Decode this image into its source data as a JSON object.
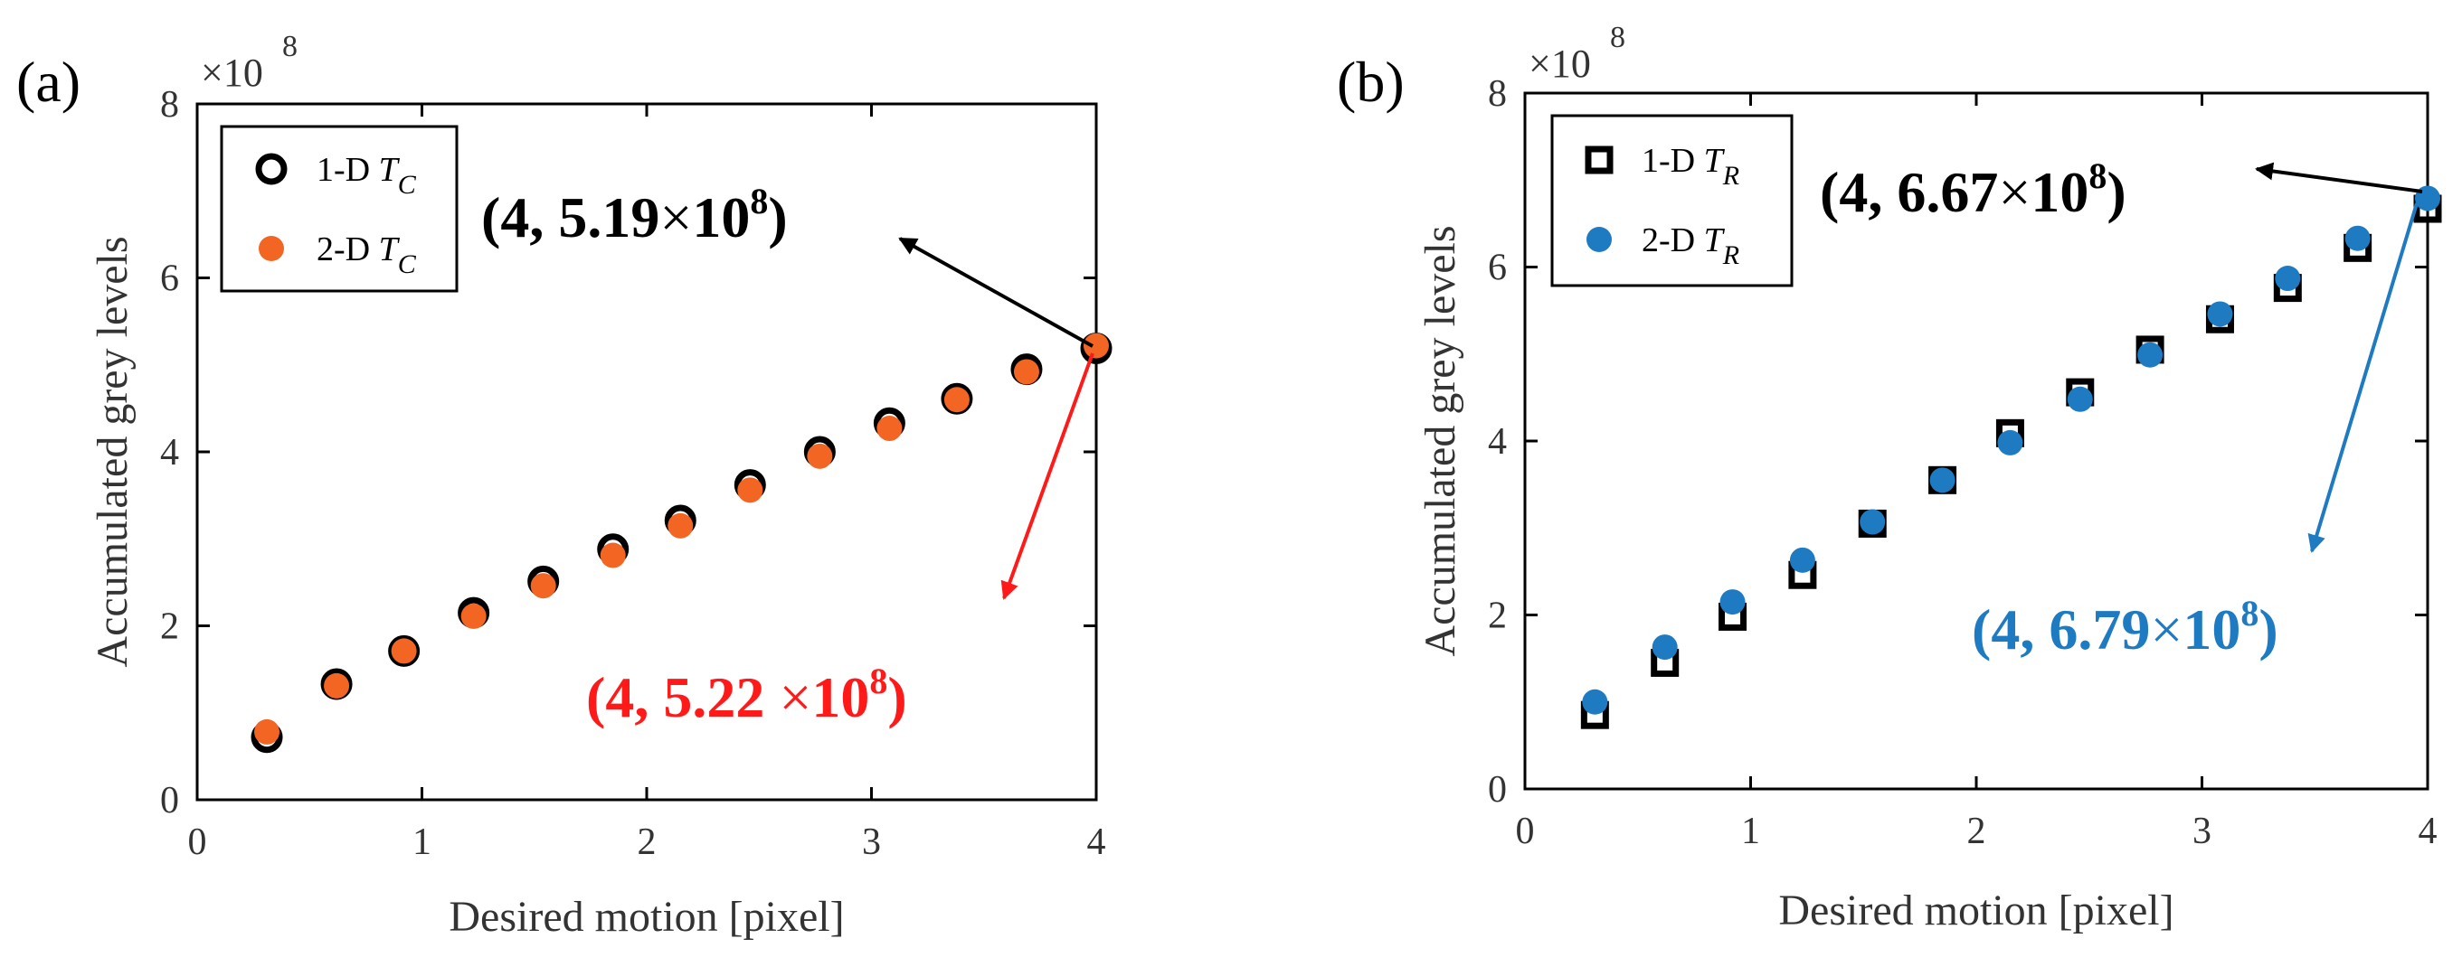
{
  "chart_data": [
    {
      "panel_label": "(a)",
      "type": "scatter",
      "xlabel": "Desired motion [pixel]",
      "ylabel": "Accumulated grey levels",
      "y_exponent": "×10",
      "y_exponent_power": "8",
      "xlim": [
        0,
        4
      ],
      "ylim": [
        0,
        8
      ],
      "xticks": [
        "0",
        "1",
        "2",
        "3",
        "4"
      ],
      "yticks": [
        "0",
        "2",
        "4",
        "6",
        "8"
      ],
      "legend_position": "top-left",
      "series": [
        {
          "name": "1-D",
          "name_sub": "T",
          "name_subscript": "C",
          "marker": "ring",
          "color": "#000000",
          "x": [
            0.31,
            0.62,
            0.92,
            1.23,
            1.54,
            1.85,
            2.15,
            2.46,
            2.77,
            3.08,
            3.38,
            3.69,
            4.0
          ],
          "y": [
            0.72,
            1.33,
            1.71,
            2.15,
            2.51,
            2.88,
            3.21,
            3.62,
            4.0,
            4.33,
            4.61,
            4.95,
            5.19
          ]
        },
        {
          "name": "2-D",
          "name_sub": "T",
          "name_subscript": "C",
          "marker": "dot",
          "color": "#F26522",
          "x": [
            0.31,
            0.62,
            0.92,
            1.23,
            1.54,
            1.85,
            2.15,
            2.46,
            2.77,
            3.08,
            3.38,
            3.69,
            4.0
          ],
          "y": [
            0.78,
            1.31,
            1.71,
            2.11,
            2.46,
            2.81,
            3.15,
            3.56,
            3.95,
            4.27,
            4.6,
            4.92,
            5.22
          ]
        }
      ],
      "annotations": [
        {
          "prefix": "(4, 5.19",
          "times": "×",
          "base": "10",
          "power": "8",
          "suffix": ")",
          "color": "#000000"
        },
        {
          "prefix": "(4, 5.22 ",
          "times": "×",
          "base": "10",
          "power": "8",
          "suffix": ")",
          "color": "#FF1A1A"
        }
      ]
    },
    {
      "panel_label": "(b)",
      "type": "scatter",
      "xlabel": "Desired motion [pixel]",
      "ylabel": "Accumulated grey levels",
      "y_exponent": "×10",
      "y_exponent_power": "8",
      "xlim": [
        0,
        4
      ],
      "ylim": [
        0,
        8
      ],
      "xticks": [
        "0",
        "1",
        "2",
        "3",
        "4"
      ],
      "yticks": [
        "0",
        "2",
        "4",
        "6",
        "8"
      ],
      "legend_position": "top-left",
      "series": [
        {
          "name": "1-D",
          "name_sub": "T",
          "name_subscript": "R",
          "marker": "square",
          "color": "#000000",
          "x": [
            0.31,
            0.62,
            0.92,
            1.23,
            1.54,
            1.85,
            2.15,
            2.46,
            2.77,
            3.08,
            3.38,
            3.69,
            4.0
          ],
          "y": [
            0.85,
            1.45,
            1.98,
            2.46,
            3.05,
            3.55,
            4.09,
            4.56,
            5.05,
            5.4,
            5.76,
            6.22,
            6.67
          ]
        },
        {
          "name": "2-D",
          "name_sub": "T",
          "name_subscript": "R",
          "marker": "dot",
          "color": "#1F7BC1",
          "x": [
            0.31,
            0.62,
            0.92,
            1.23,
            1.54,
            1.85,
            2.15,
            2.46,
            2.77,
            3.08,
            3.38,
            3.69,
            4.0
          ],
          "y": [
            1.0,
            1.63,
            2.15,
            2.63,
            3.07,
            3.55,
            3.98,
            4.48,
            4.99,
            5.46,
            5.87,
            6.33,
            6.79
          ]
        }
      ],
      "annotations": [
        {
          "prefix": "(4, 6.67",
          "times": "×",
          "base": "10",
          "power": "8",
          "suffix": ")",
          "color": "#000000"
        },
        {
          "prefix": "(4, 6.79",
          "times": "×",
          "base": "10",
          "power": "8",
          "suffix": ")",
          "color": "#1F7BC1"
        }
      ]
    }
  ]
}
